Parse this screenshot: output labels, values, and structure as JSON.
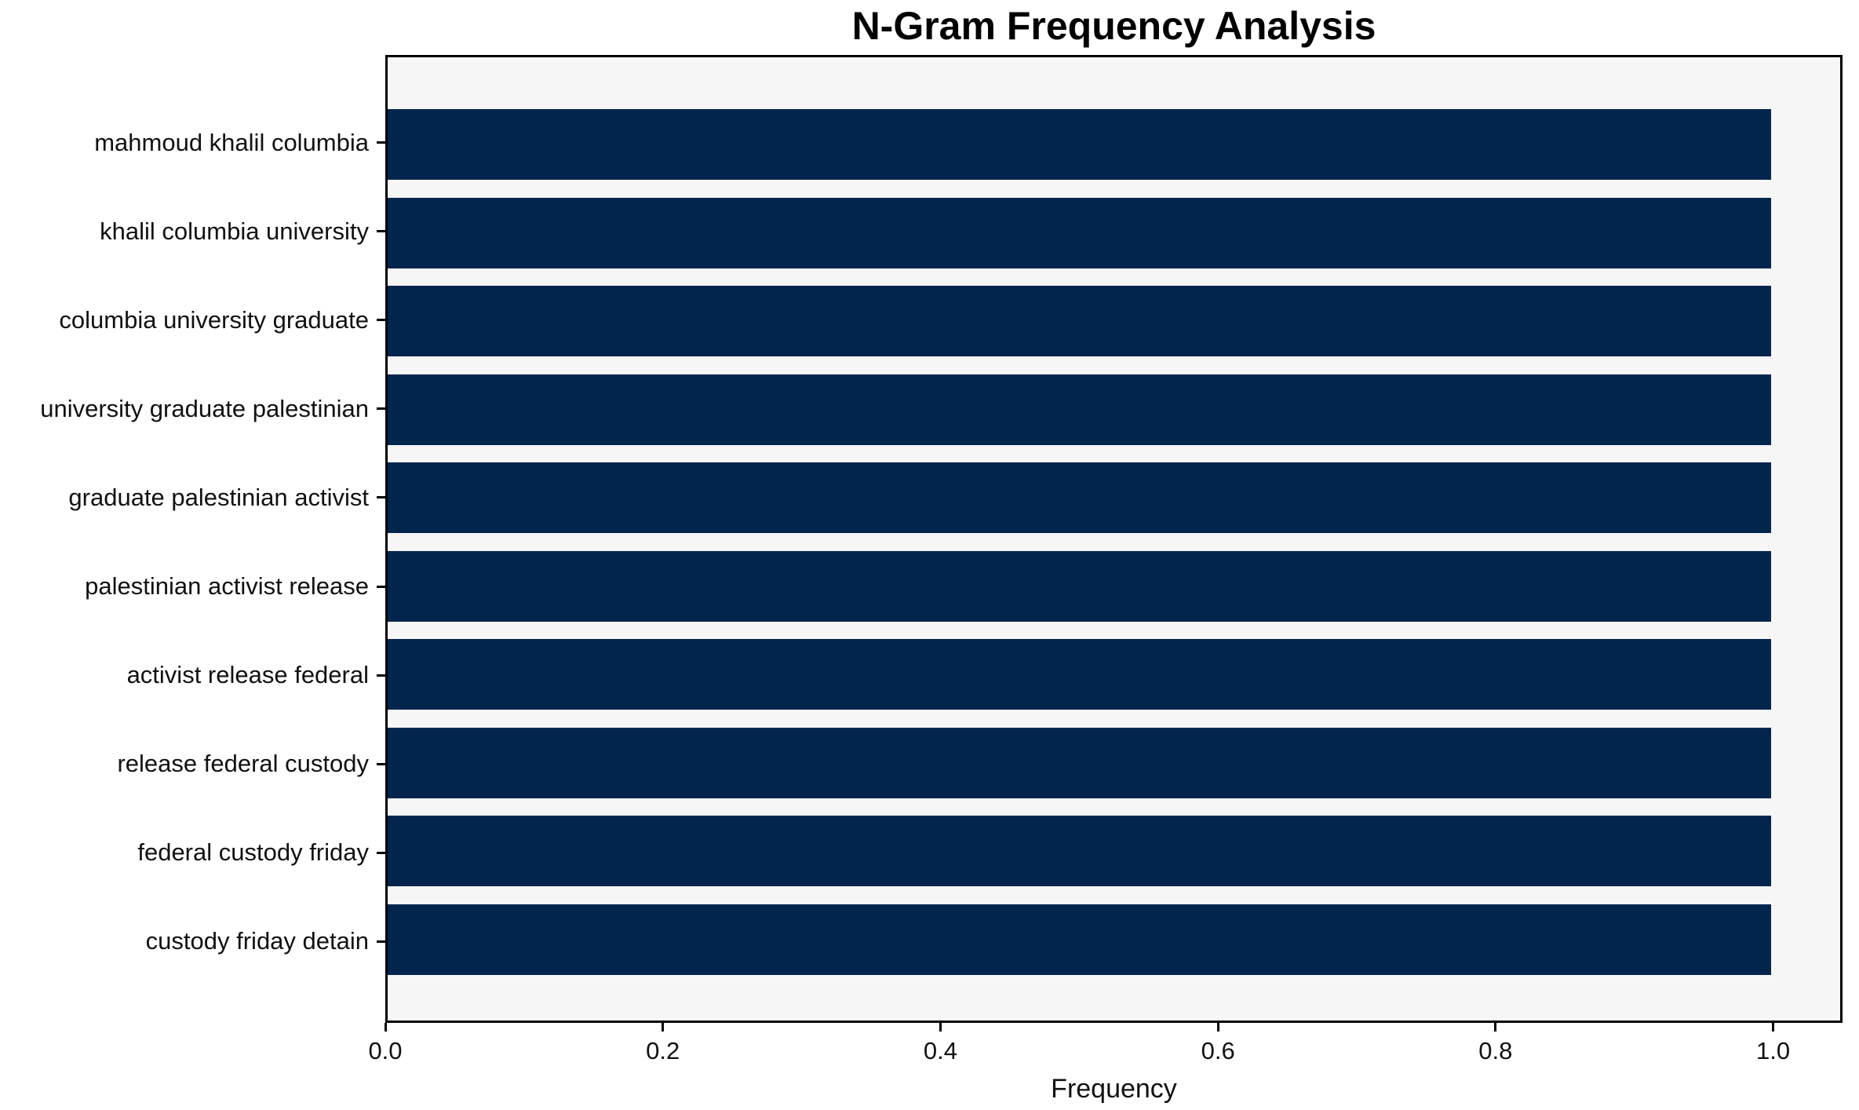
{
  "title": "N-Gram Frequency Analysis",
  "colors": {
    "bar": "#02254e",
    "plot_background": "#f6f6f6",
    "figure_background": "#ffffff",
    "spine": "#000000",
    "text": "#111111"
  },
  "chart_data": {
    "type": "bar",
    "orientation": "horizontal",
    "title": "N-Gram Frequency Analysis",
    "categories": [
      "mahmoud khalil columbia",
      "khalil columbia university",
      "columbia university graduate",
      "university graduate palestinian",
      "graduate palestinian activist",
      "palestinian activist release",
      "activist release federal",
      "release federal custody",
      "federal custody friday",
      "custody friday detain"
    ],
    "values": [
      1.0,
      1.0,
      1.0,
      1.0,
      1.0,
      1.0,
      1.0,
      1.0,
      1.0,
      1.0
    ],
    "xlabel": "Frequency",
    "ylabel": "",
    "xlim": [
      0,
      1.05
    ],
    "x_ticks": [
      0.0,
      0.2,
      0.4,
      0.6,
      0.8,
      1.0
    ],
    "x_tick_labels": [
      "0.0",
      "0.2",
      "0.4",
      "0.6",
      "0.8",
      "1.0"
    ],
    "grid": false,
    "legend": false,
    "bar_color": "#02254e"
  }
}
